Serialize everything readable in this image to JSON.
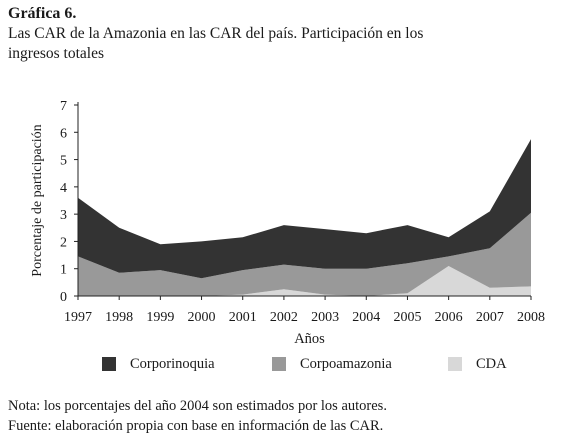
{
  "heading": "Gráfica 6.",
  "subtitle": "Las CAR de la Amazonia en las CAR del país. Participación en los ingresos totales",
  "chart_data": {
    "type": "area",
    "stacked": true,
    "x": [
      "1997",
      "1998",
      "1999",
      "2000",
      "2001",
      "2002",
      "2003",
      "2004",
      "2005",
      "2006",
      "2007",
      "2008"
    ],
    "series": [
      {
        "name": "CDA",
        "color": "#d8d8d8",
        "values": [
          0,
          0,
          0,
          0,
          0.05,
          0.25,
          0.05,
          0,
          0.1,
          1.1,
          0.3,
          0.35
        ]
      },
      {
        "name": "Corpoamazonia",
        "color": "#999999",
        "values": [
          1.45,
          0.85,
          0.95,
          0.65,
          0.9,
          0.9,
          0.95,
          1.0,
          1.1,
          0.35,
          1.45,
          2.7
        ]
      },
      {
        "name": "Corporinoquia",
        "color": "#333333",
        "values": [
          2.15,
          1.65,
          0.95,
          1.35,
          1.2,
          1.45,
          1.45,
          1.3,
          1.4,
          0.7,
          1.35,
          2.7
        ]
      }
    ],
    "xlabel": "Años",
    "ylabel": "Porcentaje de participación",
    "ylim": [
      0,
      7
    ],
    "yticks": [
      0,
      1,
      2,
      3,
      4,
      5,
      6,
      7
    ],
    "grid": false,
    "legend_position": "bottom"
  },
  "legend": [
    {
      "label": "Corporinoquia",
      "color": "#333333"
    },
    {
      "label": "Corpoamazonia",
      "color": "#999999"
    },
    {
      "label": "CDA",
      "color": "#d8d8d8"
    }
  ],
  "notes": [
    "Nota: los porcentajes del año 2004 son estimados por los autores.",
    "Fuente: elaboración propia con base en información de las CAR."
  ]
}
